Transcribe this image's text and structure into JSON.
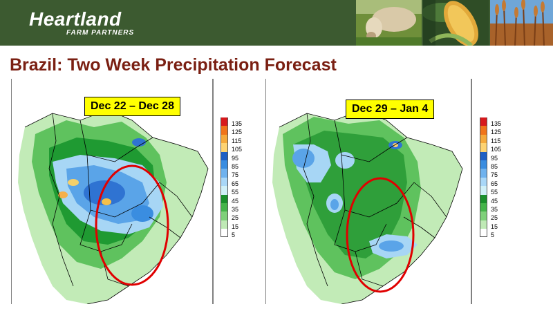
{
  "header": {
    "logo_main": "Heartland",
    "logo_sub": "FARM PARTNERS",
    "photos": [
      "cow-grazing-photo",
      "corn-ear-photo",
      "wheat-field-photo"
    ]
  },
  "slide": {
    "title": "Brazil: Two Week Precipitation Forecast"
  },
  "maps": [
    {
      "date_range": "Dec 22 – Dec 28",
      "legend": [
        "135",
        "125",
        "115",
        "105",
        "95",
        "85",
        "75",
        "65",
        "55",
        "45",
        "35",
        "25",
        "15",
        "5"
      ]
    },
    {
      "date_range": "Dec 29 – Jan 4",
      "legend": [
        "135",
        "125",
        "115",
        "105",
        "95",
        "85",
        "75",
        "65",
        "55",
        "45",
        "35",
        "25",
        "15",
        "5"
      ]
    }
  ],
  "colors": {
    "header_bg": "#3c5a30",
    "title": "#7a1f12",
    "highlight_ellipse": "#e00000",
    "date_box": "#ffff00",
    "legend_scale": [
      "#d7191c",
      "#f0741a",
      "#f5a93b",
      "#fdd372",
      "#1f5fc4",
      "#3a8de0",
      "#6fb2ee",
      "#a9d7f7",
      "#d0f0f7",
      "#1a8f2b",
      "#45b44a",
      "#7fd07a",
      "#bfe9b5",
      "#ffffff"
    ]
  }
}
